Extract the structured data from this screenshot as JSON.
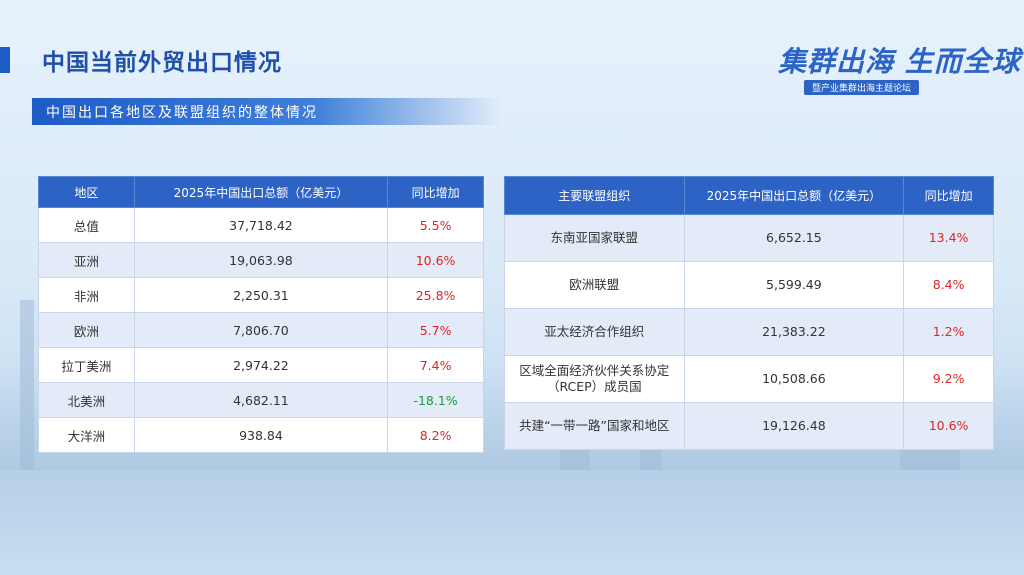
{
  "header": {
    "title": "中国当前外贸出口情况",
    "subtitle": "中国出口各地区及联盟组织的整体情况"
  },
  "logo": {
    "main": "集群出海 生而全球",
    "sub": "暨产业集群出海主题论坛"
  },
  "region_table": {
    "headers": [
      "地区",
      "2025年中国出口总额（亿美元）",
      "同比增加"
    ],
    "rows": [
      {
        "region": "总值",
        "amount": "37,718.42",
        "growth": "5.5%",
        "trend": "up"
      },
      {
        "region": "亚洲",
        "amount": "19,063.98",
        "growth": "10.6%",
        "trend": "up"
      },
      {
        "region": "非洲",
        "amount": "2,250.31",
        "growth": "25.8%",
        "trend": "up"
      },
      {
        "region": "欧洲",
        "amount": "7,806.70",
        "growth": "5.7%",
        "trend": "up"
      },
      {
        "region": "拉丁美洲",
        "amount": "2,974.22",
        "growth": "7.4%",
        "trend": "up"
      },
      {
        "region": "北美洲",
        "amount": "4,682.11",
        "growth": "-18.1%",
        "trend": "down"
      },
      {
        "region": "大洋洲",
        "amount": "938.84",
        "growth": "8.2%",
        "trend": "up"
      }
    ]
  },
  "alliance_table": {
    "headers": [
      "主要联盟组织",
      "2025年中国出口总额（亿美元）",
      "同比增加"
    ],
    "rows": [
      {
        "org": "东南亚国家联盟",
        "org2": "",
        "amount": "6,652.15",
        "growth": "13.4%",
        "trend": "up"
      },
      {
        "org": "欧洲联盟",
        "org2": "",
        "amount": "5,599.49",
        "growth": "8.4%",
        "trend": "up"
      },
      {
        "org": "亚太经济合作组织",
        "org2": "",
        "amount": "21,383.22",
        "growth": "1.2%",
        "trend": "up"
      },
      {
        "org": "区域全面经济伙伴关系协定",
        "org2": "（RCEP）成员国",
        "amount": "10,508.66",
        "growth": "9.2%",
        "trend": "up"
      },
      {
        "org": "共建“一带一路”国家和地区",
        "org2": "",
        "amount": "19,126.48",
        "growth": "10.6%",
        "trend": "up"
      }
    ]
  },
  "colors": {
    "accent": "#2e63c6",
    "positive": "#e02424",
    "negative": "#1e9a3e"
  }
}
